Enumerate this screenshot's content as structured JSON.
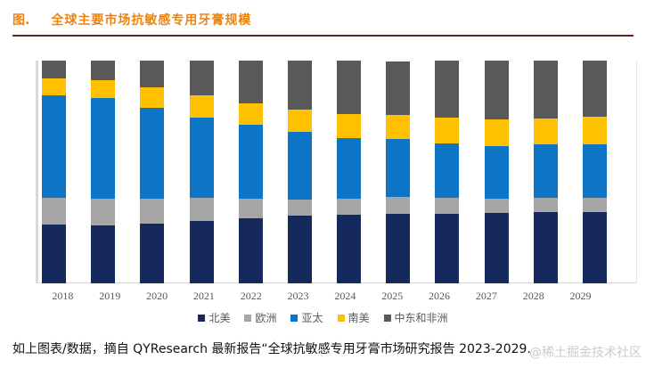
{
  "page": {
    "title_prefix": "图.",
    "title": "全球主要市场抗敏感专用牙膏规模",
    "footer": "如上图表/数据，摘自 QYResearch 最新报告“全球抗敏感专用牙膏市场研究报告 2023-2029.",
    "watermark": "@稀土掘金技术社区"
  },
  "colors": {
    "title_orange": "#ed8411",
    "title_rule_maroon": "#622423",
    "axis_text_gray": "#595959",
    "baseline_gray": "#d9d9d9",
    "watermark_gray": "#cbcbcb"
  },
  "chart_data": {
    "type": "bar",
    "stacked": true,
    "normalized_percent": true,
    "title": "全球主要市场抗敏感专用牙膏规模",
    "xlabel": "",
    "ylabel": "",
    "grid": false,
    "legend_position": "bottom",
    "ylim": [
      0,
      100
    ],
    "categories": [
      "2018",
      "2019",
      "2020",
      "2021",
      "2022",
      "2023",
      "2024",
      "2025",
      "2026",
      "2027",
      "2028",
      "2029"
    ],
    "series": [
      {
        "name": "北美",
        "color": "#16295c",
        "values": [
          26.6,
          26.2,
          27.0,
          28.2,
          29.1,
          30.4,
          30.8,
          31.2,
          31.2,
          31.6,
          32.0,
          32.0
        ]
      },
      {
        "name": "欧洲",
        "color": "#a6a6a6",
        "values": [
          11.7,
          11.7,
          10.9,
          10.1,
          8.9,
          7.3,
          7.3,
          7.5,
          7.3,
          6.3,
          6.5,
          6.5
        ]
      },
      {
        "name": "亚太",
        "color": "#0e74c6",
        "values": [
          46.0,
          45.2,
          41.1,
          36.3,
          33.2,
          30.4,
          27.1,
          26.3,
          24.3,
          23.9,
          24.0,
          24.0
        ]
      },
      {
        "name": "南美",
        "color": "#ffc000",
        "values": [
          7.7,
          8.1,
          8.9,
          9.7,
          9.7,
          10.1,
          10.9,
          10.5,
          11.7,
          11.7,
          11.5,
          12.5
        ]
      },
      {
        "name": "中东和非洲",
        "color": "#595959",
        "values": [
          8.1,
          8.9,
          12.1,
          15.7,
          19.0,
          21.9,
          23.9,
          24.3,
          25.5,
          26.5,
          26.0,
          25.0
        ]
      }
    ]
  }
}
